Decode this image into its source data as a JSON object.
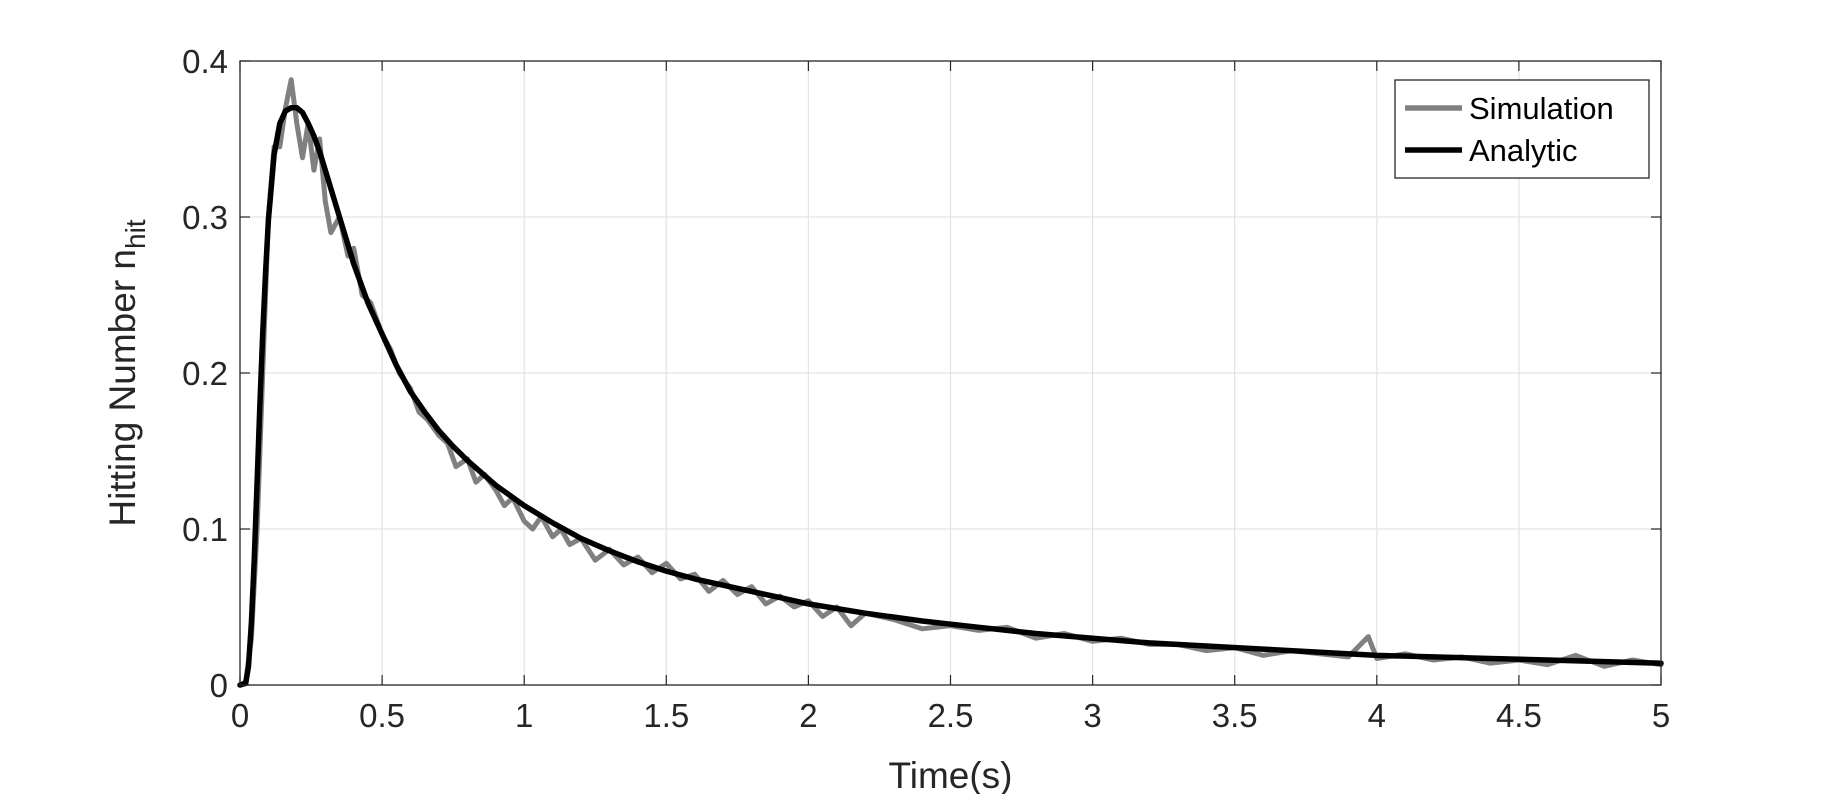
{
  "chart_data": {
    "type": "line",
    "title": "",
    "xlabel": "Time(s)",
    "ylabel": "Hitting Number n",
    "ylabel_subscript": "hit",
    "xlim": [
      0,
      5
    ],
    "ylim": [
      0,
      0.4
    ],
    "xticks": [
      0,
      0.5,
      1,
      1.5,
      2,
      2.5,
      3,
      3.5,
      4,
      4.5,
      5
    ],
    "xtick_labels": [
      "0",
      "0.5",
      "1",
      "1.5",
      "2",
      "2.5",
      "3",
      "3.5",
      "4",
      "4.5",
      "5"
    ],
    "yticks": [
      0,
      0.1,
      0.2,
      0.3,
      0.4
    ],
    "ytick_labels": [
      "0",
      "0.1",
      "0.2",
      "0.3",
      "0.4"
    ],
    "grid": true,
    "legend_position": "top-right",
    "series": [
      {
        "name": "Simulation",
        "color": "#808080",
        "x": [
          0,
          0.02,
          0.04,
          0.06,
          0.08,
          0.1,
          0.12,
          0.14,
          0.16,
          0.18,
          0.2,
          0.22,
          0.24,
          0.26,
          0.28,
          0.3,
          0.32,
          0.35,
          0.38,
          0.4,
          0.43,
          0.46,
          0.5,
          0.53,
          0.56,
          0.6,
          0.63,
          0.66,
          0.7,
          0.73,
          0.76,
          0.8,
          0.83,
          0.86,
          0.9,
          0.93,
          0.96,
          1.0,
          1.03,
          1.06,
          1.1,
          1.13,
          1.16,
          1.2,
          1.25,
          1.3,
          1.35,
          1.4,
          1.45,
          1.5,
          1.55,
          1.6,
          1.65,
          1.7,
          1.75,
          1.8,
          1.85,
          1.9,
          1.95,
          2.0,
          2.05,
          2.1,
          2.15,
          2.2,
          2.3,
          2.4,
          2.5,
          2.6,
          2.7,
          2.8,
          2.9,
          3.0,
          3.1,
          3.2,
          3.3,
          3.4,
          3.5,
          3.6,
          3.7,
          3.8,
          3.9,
          3.97,
          4.0,
          4.1,
          4.2,
          4.3,
          4.4,
          4.5,
          4.6,
          4.7,
          4.8,
          4.9,
          5.0
        ],
        "y": [
          0.0,
          0.002,
          0.03,
          0.1,
          0.2,
          0.3,
          0.345,
          0.345,
          0.37,
          0.388,
          0.36,
          0.338,
          0.36,
          0.33,
          0.35,
          0.31,
          0.29,
          0.3,
          0.275,
          0.28,
          0.25,
          0.245,
          0.225,
          0.215,
          0.2,
          0.19,
          0.175,
          0.17,
          0.16,
          0.155,
          0.14,
          0.145,
          0.13,
          0.135,
          0.125,
          0.115,
          0.12,
          0.105,
          0.1,
          0.108,
          0.095,
          0.1,
          0.09,
          0.094,
          0.08,
          0.087,
          0.077,
          0.082,
          0.072,
          0.078,
          0.068,
          0.071,
          0.06,
          0.067,
          0.058,
          0.063,
          0.052,
          0.057,
          0.05,
          0.054,
          0.044,
          0.05,
          0.038,
          0.046,
          0.042,
          0.036,
          0.038,
          0.035,
          0.037,
          0.03,
          0.033,
          0.028,
          0.03,
          0.026,
          0.026,
          0.022,
          0.024,
          0.019,
          0.022,
          0.02,
          0.018,
          0.031,
          0.017,
          0.02,
          0.016,
          0.018,
          0.014,
          0.016,
          0.013,
          0.019,
          0.012,
          0.016,
          0.013
        ]
      },
      {
        "name": "Analytic",
        "color": "#000000",
        "x": [
          0,
          0.02,
          0.03,
          0.04,
          0.05,
          0.06,
          0.07,
          0.08,
          0.09,
          0.1,
          0.12,
          0.14,
          0.16,
          0.18,
          0.2,
          0.22,
          0.24,
          0.26,
          0.28,
          0.3,
          0.35,
          0.4,
          0.45,
          0.5,
          0.55,
          0.6,
          0.65,
          0.7,
          0.75,
          0.8,
          0.9,
          1.0,
          1.1,
          1.2,
          1.3,
          1.4,
          1.5,
          1.6,
          1.7,
          1.8,
          1.9,
          2.0,
          2.2,
          2.4,
          2.6,
          2.8,
          3.0,
          3.2,
          3.4,
          3.6,
          3.8,
          4.0,
          4.2,
          4.4,
          4.6,
          4.8,
          5.0
        ],
        "y": [
          0.0,
          0.001,
          0.012,
          0.04,
          0.08,
          0.13,
          0.18,
          0.225,
          0.265,
          0.298,
          0.34,
          0.36,
          0.368,
          0.37,
          0.37,
          0.367,
          0.36,
          0.352,
          0.342,
          0.33,
          0.3,
          0.27,
          0.245,
          0.225,
          0.205,
          0.188,
          0.175,
          0.163,
          0.153,
          0.144,
          0.128,
          0.115,
          0.104,
          0.094,
          0.086,
          0.079,
          0.073,
          0.068,
          0.064,
          0.06,
          0.056,
          0.052,
          0.046,
          0.041,
          0.037,
          0.033,
          0.03,
          0.027,
          0.025,
          0.023,
          0.021,
          0.019,
          0.018,
          0.017,
          0.016,
          0.015,
          0.014
        ]
      }
    ]
  }
}
